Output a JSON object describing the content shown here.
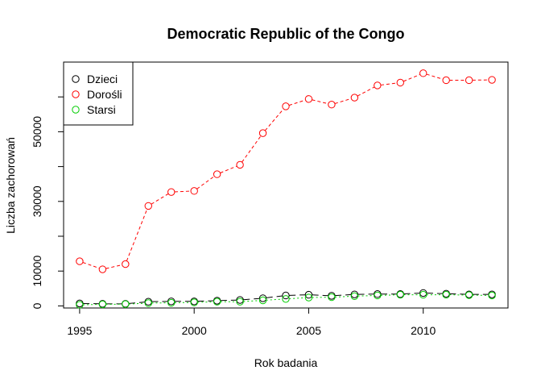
{
  "chart_data": {
    "type": "line",
    "title": "Democratic Republic of the Congo",
    "xlabel": "Rok badania",
    "ylabel": "Liczba zachorowań",
    "x": [
      1995,
      1996,
      1997,
      1998,
      1999,
      2000,
      2001,
      2002,
      2003,
      2004,
      2005,
      2006,
      2007,
      2008,
      2009,
      2010,
      2011,
      2012,
      2013
    ],
    "xlim": [
      1994.3,
      2013.7
    ],
    "ylim": [
      -600,
      70000
    ],
    "xticks": [
      1995,
      2000,
      2005,
      2010
    ],
    "yticks": [
      0,
      10000,
      30000,
      50000
    ],
    "xtick_labels": [
      "1995",
      "2000",
      "2005",
      "2010"
    ],
    "ytick_labels": [
      "0",
      "10000",
      "30000",
      "50000"
    ],
    "legend_position": "top-left",
    "grid": false,
    "series": [
      {
        "name": "Dzieci",
        "color": "#000000",
        "dash": "8,5",
        "values": [
          700,
          600,
          600,
          1200,
          1300,
          1300,
          1500,
          1700,
          2200,
          3000,
          3200,
          2900,
          3300,
          3400,
          3400,
          3700,
          3500,
          3300,
          3300
        ]
      },
      {
        "name": "Dorośli",
        "color": "#ff0000",
        "dash": "4,3",
        "values": [
          12800,
          10500,
          12000,
          28700,
          32700,
          33000,
          37800,
          40500,
          49600,
          57300,
          59400,
          57800,
          59800,
          63300,
          64100,
          66800,
          64800,
          64800,
          64900
        ]
      },
      {
        "name": "Starsi",
        "color": "#00cd00",
        "dash": "2,3",
        "values": [
          300,
          450,
          500,
          800,
          900,
          1000,
          1200,
          1200,
          1600,
          2000,
          2400,
          2500,
          2800,
          3000,
          3200,
          3200,
          3200,
          3100,
          3000
        ]
      }
    ]
  }
}
